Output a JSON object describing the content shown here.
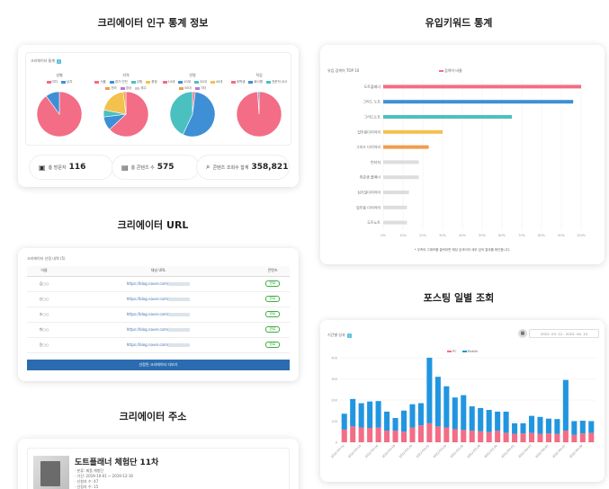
{
  "sections": {
    "population": "크리에이터 인구 통계 정보",
    "keywords": "유입키워드 통계",
    "url": "크리에이터 URL",
    "posting": "포스팅 일별 조회",
    "address": "크리에이터 주소"
  },
  "population_card": {
    "header": "크리에이터 통계",
    "pies": [
      {
        "title": "성별",
        "legend": [
          "여자",
          "남자"
        ],
        "colors": [
          "#f26d85",
          "#3e8fd6"
        ],
        "values": [
          90,
          10
        ]
      },
      {
        "title": "지역",
        "legend": [
          "서울",
          "경기·인천",
          "강원",
          "충청",
          "전라",
          "경상",
          "제주"
        ],
        "colors": [
          "#f26d85",
          "#3e8fd6",
          "#4bc0c0",
          "#f2c14e",
          "#f29c4e",
          "#b67ad6",
          "#cccccc"
        ],
        "values": [
          63,
          10,
          5,
          20,
          2
        ]
      },
      {
        "title": "연령",
        "legend": [
          "10대",
          "20대",
          "30대",
          "40대",
          "50대",
          "기타"
        ],
        "colors": [
          "#f26d85",
          "#3e8fd6",
          "#4bc0c0",
          "#f2c14e",
          "#f29c4e",
          "#b67ad6"
        ],
        "values": [
          2,
          55,
          43
        ]
      },
      {
        "title": "직업",
        "legend": [
          "대학생",
          "회사원",
          "전문직·교사"
        ],
        "colors": [
          "#f26d85",
          "#3e8fd6",
          "#4bc0c0"
        ],
        "values": [
          99,
          1
        ]
      }
    ],
    "stats": [
      {
        "label": "총 방문자",
        "value": "116"
      },
      {
        "label": "총 콘텐츠 수",
        "value": "575"
      },
      {
        "label": "콘텐츠 조회수 합계",
        "value": "358,821"
      }
    ]
  },
  "keywords_card": {
    "header": "유입 검색어 TOP 10",
    "legend": "검색어 비율",
    "footnote": "* 우측의 그래프를 클릭하면 해당 검색어의 세부 검색 결과를 확인합니다.",
    "chart_data": {
      "type": "bar",
      "orientation": "horizontal",
      "categories": [
        "도트플래너",
        "그리드 노트",
        "그리드노트",
        "업무용다이어리",
        "그리드 다이어리",
        "빈티지",
        "취준생 플래너",
        "심기일다이어리",
        "업무용 다이어리",
        "도트노트"
      ],
      "values": [
        100,
        96,
        65,
        30,
        23,
        18,
        18,
        13,
        12,
        12
      ],
      "colors": [
        "#f26d85",
        "#3e8fd6",
        "#4bc0c0",
        "#f2c14e",
        "#f29c4e",
        "#dddddd",
        "#dddddd",
        "#dddddd",
        "#dddddd",
        "#dddddd"
      ],
      "ticks": [
        "0%",
        "10%",
        "20%",
        "30%",
        "40%",
        "50%",
        "60%",
        "70%",
        "80%",
        "90%",
        "100%"
      ],
      "xlim": [
        0,
        100
      ]
    }
  },
  "url_card": {
    "header": "크리에이터 선정 내역 (5)",
    "columns": [
      "이름",
      "채널 URL",
      "콘텐츠"
    ],
    "rows": [
      {
        "name": "김○○",
        "url": "https://blog.naver.com/",
        "status": "완료"
      },
      {
        "name": "신○○",
        "url": "https://blog.naver.com/",
        "status": "완료"
      },
      {
        "name": "조○○",
        "url": "https://blog.naver.com/",
        "status": "완료"
      },
      {
        "name": "박○○",
        "url": "https://blog.naver.com/",
        "status": "완료"
      },
      {
        "name": "윤○○",
        "url": "https://blog.naver.com/",
        "status": "완료"
      }
    ],
    "button": "선정된 크리에이터 더보기"
  },
  "posting_card": {
    "header": "기간별 성과",
    "date_range": "2022. 03. 12 - 2022. 04. 10",
    "chart_data": {
      "type": "bar",
      "stacked": true,
      "series": [
        {
          "name": "PC",
          "color": "#f26d85",
          "values": [
            60,
            75,
            70,
            68,
            70,
            55,
            55,
            50,
            70,
            80,
            90,
            75,
            70,
            62,
            58,
            55,
            52,
            48,
            55,
            45,
            40,
            42,
            45,
            40,
            42,
            40,
            55,
            35,
            42,
            45
          ]
        },
        {
          "name": "Mobile",
          "color": "#2196e0",
          "values": [
            75,
            130,
            115,
            125,
            125,
            90,
            60,
            100,
            110,
            105,
            310,
            235,
            195,
            150,
            165,
            115,
            110,
            105,
            90,
            100,
            50,
            48,
            80,
            80,
            70,
            70,
            240,
            65,
            60,
            55
          ]
        }
      ],
      "ylim": [
        0,
        400
      ],
      "yticks": [
        "0",
        "100",
        "200",
        "300",
        "400"
      ],
      "x": [
        "2022-03-12",
        "2022-03-13",
        "2022-03-14",
        "2022-03-15",
        "2022-03-16",
        "2022-03-17",
        "2022-03-18",
        "2022-03-19",
        "2022-03-20",
        "2022-03-21",
        "2022-03-22",
        "2022-03-23",
        "2022-03-24",
        "2022-03-25",
        "2022-03-26",
        "2022-03-27",
        "2022-03-28",
        "2022-03-29",
        "2022-03-30",
        "2022-03-31",
        "2022-04-01",
        "2022-04-02",
        "2022-04-03",
        "2022-04-04",
        "2022-04-05",
        "2022-04-06",
        "2022-04-07",
        "2022-04-08",
        "2022-04-09",
        "2022-04-10"
      ]
    }
  },
  "address_card": {
    "title": "도트플래너 체험단 11차",
    "lines": [
      "· 분류: 제품 체험단",
      "· 기간: 2019-10-01 ~ 2019-12-16",
      "· 신청자 수: 47",
      "· 선정자 수: 15"
    ]
  }
}
